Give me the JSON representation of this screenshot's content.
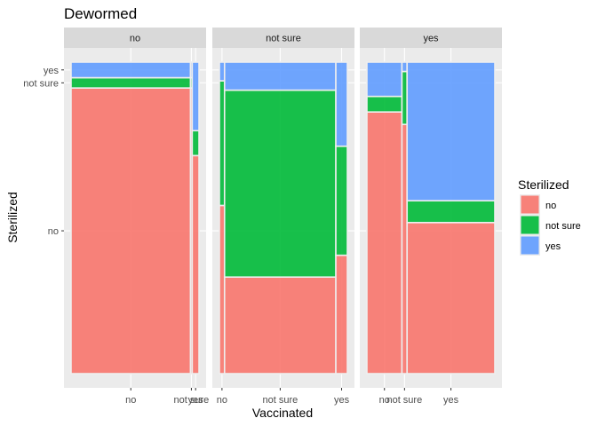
{
  "chart_data": {
    "type": "mosaic",
    "title": "Dewormed",
    "xlabel": "Vaccinated",
    "ylabel": "Sterilized",
    "facet_variable": "Dewormed",
    "facets": [
      "no",
      "not sure",
      "yes"
    ],
    "x_categories": [
      "no",
      "not sure",
      "yes"
    ],
    "y_categories": [
      "no",
      "not sure",
      "yes"
    ],
    "legend_title": "Sterilized",
    "legend_position": "right",
    "colors": {
      "no": "#F8766D",
      "not sure": "#00BA38",
      "yes": "#619CFF"
    },
    "x_tick_labels": [
      "no",
      "not sure",
      "yes"
    ],
    "y_tick_labels": [
      "no",
      "not sure",
      "yes"
    ],
    "panels": [
      {
        "facet": "no",
        "columns": [
          {
            "vaccinated": "no",
            "width": 0.934,
            "sterilized": {
              "no": 0.917,
              "not sure": 0.033,
              "yes": 0.05
            }
          },
          {
            "vaccinated": "not sure",
            "width": 0.013,
            "sterilized": {
              "no": 0.917,
              "not sure": 0.033,
              "yes": 0.05
            }
          },
          {
            "vaccinated": "yes",
            "width": 0.053,
            "sterilized": {
              "no": 0.7,
              "not sure": 0.08,
              "yes": 0.22
            }
          }
        ]
      },
      {
        "facet": "not sure",
        "columns": [
          {
            "vaccinated": "no",
            "width": 0.04,
            "sterilized": {
              "no": 0.54,
              "not sure": 0.4,
              "yes": 0.06
            }
          },
          {
            "vaccinated": "not sure",
            "width": 0.87,
            "sterilized": {
              "no": 0.31,
              "not sure": 0.6,
              "yes": 0.09
            }
          },
          {
            "vaccinated": "yes",
            "width": 0.09,
            "sterilized": {
              "no": 0.38,
              "not sure": 0.35,
              "yes": 0.27
            }
          }
        ]
      },
      {
        "facet": "yes",
        "columns": [
          {
            "vaccinated": "no",
            "width": 0.274,
            "sterilized": {
              "no": 0.84,
              "not sure": 0.05,
              "yes": 0.11
            }
          },
          {
            "vaccinated": "not sure",
            "width": 0.04,
            "sterilized": {
              "no": 0.8,
              "not sure": 0.17,
              "yes": 0.03
            }
          },
          {
            "vaccinated": "yes",
            "width": 0.686,
            "sterilized": {
              "no": 0.485,
              "not sure": 0.07,
              "yes": 0.445
            }
          }
        ]
      }
    ]
  }
}
